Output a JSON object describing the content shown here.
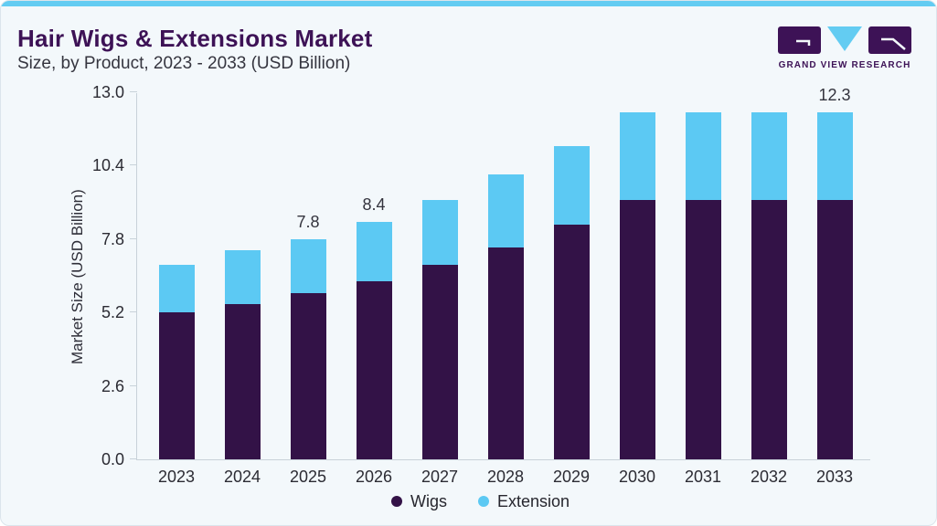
{
  "header": {
    "title": "Hair Wigs & Extensions Market",
    "subtitle": "Size, by Product, 2023 - 2033 (USD Billion)"
  },
  "logo": {
    "text": "GRAND VIEW RESEARCH"
  },
  "colors": {
    "background": "#f3f8fb",
    "accent_strip": "#63ccf2",
    "title_purple": "#3d1256",
    "wigs_bar": "#331247",
    "extension_bar": "#5cc9f3",
    "axis_line": "#c8d2d9",
    "tick_text": "#2b2b33"
  },
  "chart_data": {
    "type": "bar",
    "stacked": true,
    "title": "Hair Wigs & Extensions Market Size, by Product, 2023 - 2033 (USD Billion)",
    "xlabel": "",
    "ylabel": "Market Size (USD Billion)",
    "ylim": [
      0,
      13.0
    ],
    "yticks": [
      0.0,
      2.6,
      5.2,
      7.8,
      10.4,
      13.0
    ],
    "ytick_labels": [
      "0.0",
      "2.6",
      "5.2",
      "7.8",
      "10.4",
      "13.0"
    ],
    "categories": [
      "2023",
      "2024",
      "2025",
      "2026",
      "2027",
      "2028",
      "2029",
      "2030",
      "2031",
      "2032",
      "2033"
    ],
    "series": [
      {
        "name": "Wigs",
        "color": "#331247",
        "values": [
          5.2,
          5.5,
          5.9,
          6.3,
          6.9,
          7.5,
          8.3,
          9.2,
          9.2,
          9.2,
          9.2
        ]
      },
      {
        "name": "Extension",
        "color": "#5cc9f3",
        "values": [
          1.7,
          1.9,
          1.9,
          2.1,
          2.3,
          2.6,
          2.8,
          3.1,
          3.1,
          3.1,
          3.1
        ]
      }
    ],
    "totals": [
      6.9,
      7.4,
      7.8,
      8.4,
      9.2,
      10.1,
      11.1,
      12.3,
      12.3,
      12.3,
      12.3
    ],
    "bar_labels": {
      "2025": "7.8",
      "2026": "8.4",
      "2033": "12.3"
    },
    "legend_position": "bottom",
    "grid": false
  }
}
